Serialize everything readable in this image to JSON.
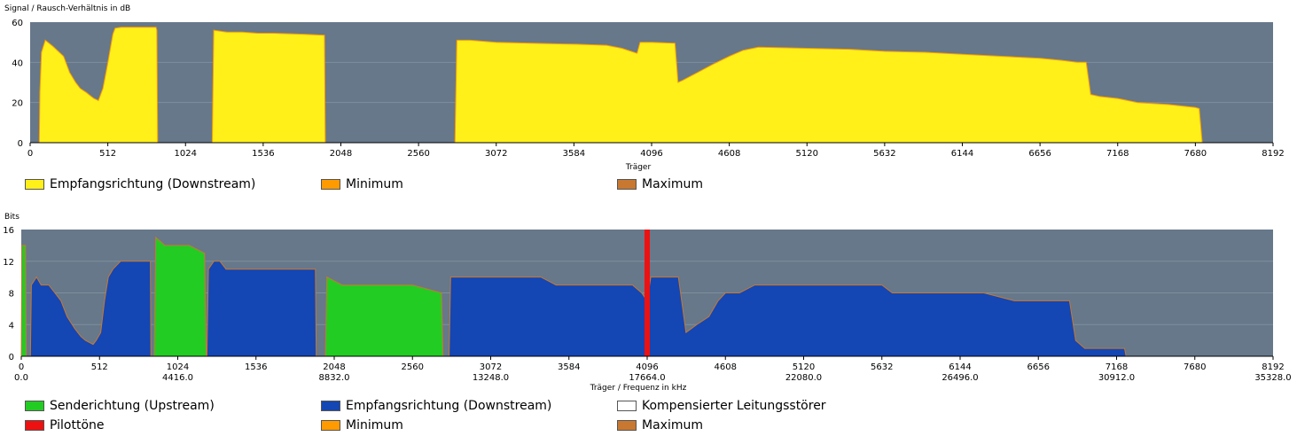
{
  "chart_data": [
    {
      "type": "area",
      "ylabel": "Signal / Rausch-Verhältnis in dB",
      "xlabel": "Träger",
      "xlim": [
        0,
        8192
      ],
      "ylim": [
        0,
        60
      ],
      "yticks": [
        0,
        20,
        40,
        60
      ],
      "xticks": [
        0,
        512,
        1024,
        1536,
        2048,
        2560,
        3072,
        3584,
        4096,
        4608,
        5120,
        5632,
        6144,
        6656,
        7168,
        7680,
        8192
      ],
      "colors": {
        "plot_bg": "#66788a",
        "fill": "#fff019",
        "minimum": "#ff9a00",
        "maximum": "#c87830"
      },
      "legend": [
        "Empfangsrichtung (Downstream)",
        "Minimum",
        "Maximum"
      ],
      "series": [
        {
          "name": "Empfangsrichtung (Downstream)",
          "points": [
            [
              60,
              0
            ],
            [
              64,
              25
            ],
            [
              75,
              45
            ],
            [
              100,
              51
            ],
            [
              150,
              48
            ],
            [
              220,
              43
            ],
            [
              260,
              35
            ],
            [
              300,
              30
            ],
            [
              330,
              27
            ],
            [
              370,
              25
            ],
            [
              420,
              22
            ],
            [
              450,
              21
            ],
            [
              480,
              27
            ],
            [
              510,
              39
            ],
            [
              545,
              54
            ],
            [
              560,
              57
            ],
            [
              600,
              57.5
            ],
            [
              700,
              57.5
            ],
            [
              830,
              57.5
            ],
            [
              835,
              56
            ],
            [
              840,
              0
            ],
            [
              1200,
              0
            ],
            [
              1210,
              56
            ],
            [
              1300,
              55
            ],
            [
              1400,
              55
            ],
            [
              1500,
              54.5
            ],
            [
              1600,
              54.5
            ],
            [
              1800,
              54
            ],
            [
              1940,
              53.5
            ],
            [
              1945,
              0
            ],
            [
              2800,
              0
            ],
            [
              2812,
              51
            ],
            [
              2900,
              51
            ],
            [
              3072,
              50
            ],
            [
              3300,
              49.5
            ],
            [
              3600,
              49
            ],
            [
              3800,
              48.5
            ],
            [
              3900,
              47
            ],
            [
              4000,
              44.5
            ],
            [
              4020,
              50
            ],
            [
              4100,
              50
            ],
            [
              4250,
              49.5
            ],
            [
              4270,
              30
            ],
            [
              4300,
              31
            ],
            [
              4400,
              35
            ],
            [
              4500,
              39
            ],
            [
              4608,
              43
            ],
            [
              4700,
              46
            ],
            [
              4800,
              47.5
            ],
            [
              5120,
              47
            ],
            [
              5400,
              46.5
            ],
            [
              5632,
              45.5
            ],
            [
              5900,
              45
            ],
            [
              6144,
              44
            ],
            [
              6400,
              43
            ],
            [
              6656,
              42
            ],
            [
              6800,
              41
            ],
            [
              6900,
              40
            ],
            [
              6960,
              40
            ],
            [
              6990,
              24
            ],
            [
              7050,
              23
            ],
            [
              7168,
              22
            ],
            [
              7300,
              20
            ],
            [
              7500,
              19
            ],
            [
              7680,
              17.5
            ],
            [
              7705,
              17
            ],
            [
              7725,
              0
            ]
          ]
        }
      ]
    },
    {
      "type": "area",
      "ylabel": "Bits",
      "xlabel": "Träger / Frequenz in kHz",
      "xlim": [
        0,
        8192
      ],
      "ylim": [
        0,
        16
      ],
      "yticks": [
        0,
        4,
        8,
        12,
        16
      ],
      "xticks": [
        0,
        512,
        1024,
        1536,
        2048,
        2560,
        3072,
        3584,
        4096,
        4608,
        5120,
        5632,
        6144,
        6656,
        7168,
        7680,
        8192
      ],
      "xticks_khz": [
        "0.0",
        "4416.0",
        "8832.0",
        "13248.0",
        "17664.0",
        "22080.0",
        "26496.0",
        "30912.0",
        "35328.0"
      ],
      "colors": {
        "plot_bg": "#66788a",
        "upstream": "#22cc22",
        "downstream": "#1446b4",
        "interference": "#ffffff",
        "pilot": "#ee1111",
        "minimum": "#ff9a00",
        "maximum": "#c87830"
      },
      "legend": [
        "Senderichtung (Upstream)",
        "Empfangsrichtung (Downstream)",
        "Kompensierter Leitungsstörer",
        "Pilottöne",
        "Minimum",
        "Maximum"
      ],
      "pilot_tones": [
        4096
      ],
      "series": [
        {
          "name": "Senderichtung (Upstream)",
          "points": [
            [
              0,
              0
            ],
            [
              4,
              14
            ],
            [
              28,
              14
            ],
            [
              32,
              0
            ],
            [
              870,
              0
            ],
            [
              880,
              15
            ],
            [
              940,
              14
            ],
            [
              1100,
              14
            ],
            [
              1200,
              13
            ],
            [
              1210,
              0
            ],
            [
              1990,
              0
            ],
            [
              2000,
              10
            ],
            [
              2100,
              9
            ],
            [
              2300,
              9
            ],
            [
              2560,
              9
            ],
            [
              2750,
              8
            ],
            [
              2760,
              0
            ]
          ]
        },
        {
          "name": "Empfangsrichtung (Downstream)",
          "points": [
            [
              60,
              0
            ],
            [
              66,
              9
            ],
            [
              100,
              10
            ],
            [
              130,
              9
            ],
            [
              180,
              9
            ],
            [
              220,
              8
            ],
            [
              260,
              7
            ],
            [
              300,
              5
            ],
            [
              350,
              3.5
            ],
            [
              390,
              2.5
            ],
            [
              420,
              2
            ],
            [
              470,
              1.5
            ],
            [
              490,
              2
            ],
            [
              520,
              3
            ],
            [
              545,
              7
            ],
            [
              570,
              10
            ],
            [
              600,
              11
            ],
            [
              650,
              12
            ],
            [
              750,
              12
            ],
            [
              845,
              12
            ],
            [
              848,
              0
            ],
            [
              1215,
              0
            ],
            [
              1225,
              11
            ],
            [
              1260,
              12
            ],
            [
              1300,
              12
            ],
            [
              1340,
              11
            ],
            [
              1600,
              11
            ],
            [
              1800,
              11
            ],
            [
              1925,
              11
            ],
            [
              1930,
              0
            ],
            [
              2800,
              0
            ],
            [
              2810,
              10
            ],
            [
              3000,
              10
            ],
            [
              3400,
              10
            ],
            [
              3500,
              9
            ],
            [
              3650,
              9
            ],
            [
              3800,
              9
            ],
            [
              4000,
              9
            ],
            [
              4060,
              8
            ],
            [
              4096,
              7
            ],
            [
              4120,
              10
            ],
            [
              4300,
              10
            ],
            [
              4350,
              3
            ],
            [
              4420,
              4
            ],
            [
              4500,
              5
            ],
            [
              4560,
              7
            ],
            [
              4608,
              8
            ],
            [
              4700,
              8
            ],
            [
              4800,
              9
            ],
            [
              5632,
              9
            ],
            [
              5700,
              8
            ],
            [
              6000,
              8
            ],
            [
              6300,
              8
            ],
            [
              6500,
              7
            ],
            [
              6860,
              7
            ],
            [
              6900,
              2
            ],
            [
              6960,
              1
            ],
            [
              7000,
              1
            ],
            [
              7150,
              1
            ],
            [
              7220,
              1
            ],
            [
              7230,
              0
            ]
          ]
        }
      ]
    }
  ]
}
